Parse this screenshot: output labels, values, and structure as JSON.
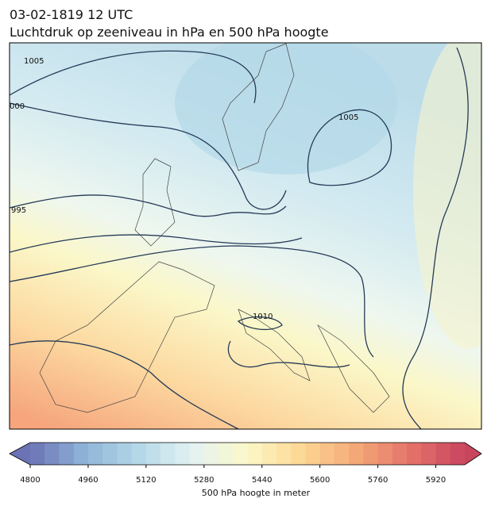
{
  "header": {
    "title": "03-02-1819 12 UTC",
    "subtitle": "Luchtdruk op zeeniveau in hPa en 500 hPa hoogte"
  },
  "map": {
    "isobar_labels": [
      1005,
      "000",
      995,
      1010,
      1005
    ]
  },
  "colorbar": {
    "label": "500 hPa hoogte in meter",
    "lim": [
      4800,
      6000
    ],
    "step": 40,
    "ticks": [
      4800,
      4960,
      5120,
      5280,
      5440,
      5600,
      5760,
      5920
    ],
    "colors": [
      "#6b73b5",
      "#8fb4d8",
      "#b4d8e8",
      "#e4f2f3",
      "#fbf8c7",
      "#fcd794",
      "#f5a877",
      "#e4736a",
      "#c8455e"
    ]
  }
}
